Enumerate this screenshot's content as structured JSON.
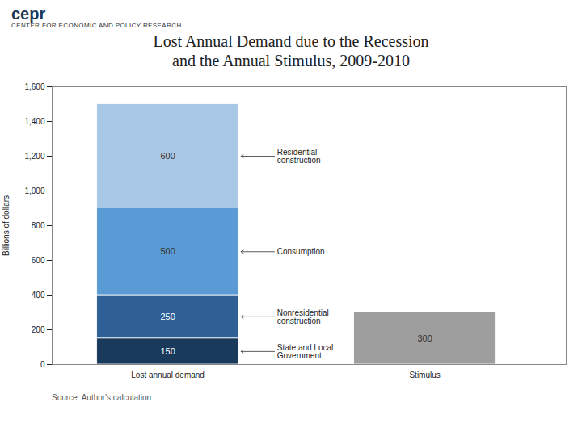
{
  "chart_data": {
    "type": "bar",
    "stacked": true,
    "title": "Lost Annual Demand due to the Recession\nand the Annual Stimulus, 2009-2010",
    "annotations": [
      "cepr",
      "CENTER FOR ECONOMIC AND POLICY RESEARCH"
    ],
    "caption": "Source: Author's calculation",
    "ylabel": "Billions of dollars",
    "categories": [
      "Lost annual demand",
      "Stimulus"
    ],
    "series": [
      {
        "name": "State and Local\nGovernment",
        "color": "#1a3a5c",
        "values": [
          150,
          null
        ]
      },
      {
        "name": "Nonresidential\nconstruction",
        "color": "#2e6096",
        "values": [
          250,
          null
        ]
      },
      {
        "name": "Consumption",
        "color": "#5b9bd5",
        "values": [
          500,
          null
        ]
      },
      {
        "name": "Residential\nconstruction",
        "color": "#a9c8e8",
        "values": [
          600,
          null
        ]
      },
      {
        "color": "#9e9e9e",
        "values": [
          null,
          300
        ]
      }
    ],
    "ylim": [
      0,
      1600
    ],
    "yticks": [
      0,
      200,
      400,
      600,
      800,
      1000,
      1200,
      1400,
      1600
    ],
    "grid": false,
    "data_labels": true
  }
}
